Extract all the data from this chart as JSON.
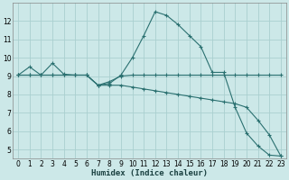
{
  "xlabel": "Humidex (Indice chaleur)",
  "background_color": "#cce8e8",
  "grid_color": "#aad0d0",
  "line_color": "#2a7070",
  "xlim": [
    -0.5,
    23.5
  ],
  "ylim": [
    4.5,
    13.0
  ],
  "xticks": [
    0,
    1,
    2,
    3,
    4,
    5,
    6,
    7,
    8,
    9,
    10,
    11,
    12,
    13,
    14,
    15,
    16,
    17,
    18,
    19,
    20,
    21,
    22,
    23
  ],
  "yticks": [
    5,
    6,
    7,
    8,
    9,
    10,
    11,
    12
  ],
  "line1_x": [
    0,
    1,
    2,
    3,
    4,
    5,
    6,
    7,
    8,
    9,
    10,
    11,
    12,
    13,
    14,
    15,
    16,
    17,
    18,
    19,
    20,
    21,
    22,
    23
  ],
  "line1_y": [
    9.05,
    9.5,
    9.05,
    9.7,
    9.1,
    9.05,
    9.05,
    8.5,
    8.6,
    9.05,
    10.0,
    11.2,
    12.5,
    12.3,
    11.8,
    11.2,
    10.6,
    9.2,
    9.2,
    7.3,
    5.9,
    5.2,
    4.7,
    4.65
  ],
  "line2_x": [
    0,
    1,
    2,
    3,
    4,
    5,
    6,
    7,
    8,
    9,
    10,
    11,
    12,
    13,
    14,
    15,
    16,
    17,
    18,
    19,
    20,
    21,
    22,
    23
  ],
  "line2_y": [
    9.05,
    9.05,
    9.05,
    9.05,
    9.05,
    9.05,
    9.05,
    8.5,
    8.7,
    9.0,
    9.05,
    9.05,
    9.05,
    9.05,
    9.05,
    9.05,
    9.05,
    9.05,
    9.05,
    9.05,
    9.05,
    9.05,
    9.05,
    9.05
  ],
  "line3_x": [
    0,
    1,
    2,
    3,
    4,
    5,
    6,
    7,
    8,
    9,
    10,
    11,
    12,
    13,
    14,
    15,
    16,
    17,
    18,
    19,
    20,
    21,
    22,
    23
  ],
  "line3_y": [
    9.05,
    9.05,
    9.05,
    9.05,
    9.05,
    9.05,
    9.05,
    8.5,
    8.5,
    8.5,
    8.4,
    8.3,
    8.2,
    8.1,
    8.0,
    7.9,
    7.8,
    7.7,
    7.6,
    7.5,
    7.3,
    6.6,
    5.8,
    4.65
  ]
}
